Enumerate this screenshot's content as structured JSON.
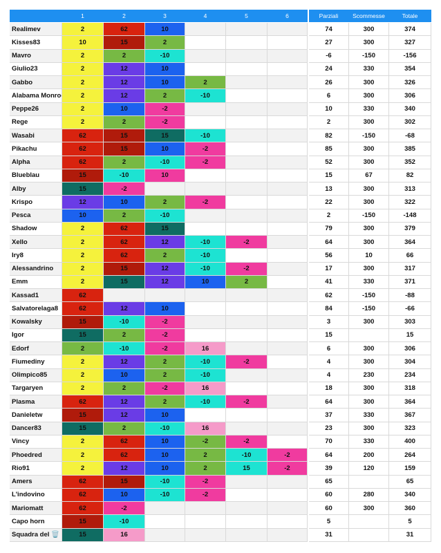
{
  "table": {
    "header": [
      "1",
      "2",
      "3",
      "4",
      "5",
      "6",
      "Parziali",
      "Scommesse",
      "Totale"
    ],
    "rows": [
      {
        "name": "Realimev",
        "scores": [
          2,
          62,
          10,
          null,
          null,
          null
        ],
        "colors": [
          "#f5f23c",
          "#d8230f",
          "#1c62ef",
          null,
          null,
          null
        ],
        "parziali": 74,
        "scommesse": 300,
        "totale": 374
      },
      {
        "name": "Kisses83",
        "scores": [
          10,
          15,
          2,
          null,
          null,
          null
        ],
        "colors": [
          "#f5f23c",
          "#b01b0b",
          "#77b944",
          null,
          null,
          null
        ],
        "parziali": 27,
        "scommesse": 300,
        "totale": 327
      },
      {
        "name": "Mavro",
        "scores": [
          2,
          2,
          -10,
          null,
          null,
          null
        ],
        "colors": [
          "#f5f23c",
          "#77b944",
          "#1de3d2",
          null,
          null,
          null
        ],
        "parziali": -6,
        "scommesse": -150,
        "totale": -156
      },
      {
        "name": "Giulio23",
        "scores": [
          2,
          12,
          10,
          null,
          null,
          null
        ],
        "colors": [
          "#f5f23c",
          "#6a3ce6",
          "#1c62ef",
          null,
          null,
          null
        ],
        "parziali": 24,
        "scommesse": 330,
        "totale": 354
      },
      {
        "name": "Gabbo",
        "scores": [
          2,
          12,
          10,
          2,
          null,
          null
        ],
        "colors": [
          "#f5f23c",
          "#6a3ce6",
          "#1c62ef",
          "#77b944",
          null,
          null
        ],
        "parziali": 26,
        "scommesse": 300,
        "totale": 326
      },
      {
        "name": "Alabama Monroe",
        "scores": [
          2,
          12,
          2,
          -10,
          null,
          null
        ],
        "colors": [
          "#f5f23c",
          "#6a3ce6",
          "#77b944",
          "#1de3d2",
          null,
          null
        ],
        "parziali": 6,
        "scommesse": 300,
        "totale": 306
      },
      {
        "name": "Peppe26",
        "scores": [
          2,
          10,
          -2,
          null,
          null,
          null
        ],
        "colors": [
          "#f5f23c",
          "#1c62ef",
          "#f03b9f",
          null,
          null,
          null
        ],
        "parziali": 10,
        "scommesse": 330,
        "totale": 340
      },
      {
        "name": "Rege",
        "scores": [
          2,
          2,
          -2,
          null,
          null,
          null
        ],
        "colors": [
          "#f5f23c",
          "#77b944",
          "#f03b9f",
          null,
          null,
          null
        ],
        "parziali": 2,
        "scommesse": 300,
        "totale": 302
      },
      {
        "name": "Wasabi",
        "scores": [
          62,
          15,
          15,
          -10,
          null,
          null
        ],
        "colors": [
          "#d8230f",
          "#b01b0b",
          "#0f6c62",
          "#1de3d2",
          null,
          null
        ],
        "parziali": 82,
        "scommesse": -150,
        "totale": -68
      },
      {
        "name": "Pikachu",
        "scores": [
          62,
          15,
          10,
          -2,
          null,
          null
        ],
        "colors": [
          "#d8230f",
          "#b01b0b",
          "#1c62ef",
          "#f03b9f",
          null,
          null
        ],
        "parziali": 85,
        "scommesse": 300,
        "totale": 385
      },
      {
        "name": "Alpha",
        "scores": [
          62,
          2,
          -10,
          -2,
          null,
          null
        ],
        "colors": [
          "#d8230f",
          "#77b944",
          "#1de3d2",
          "#f03b9f",
          null,
          null
        ],
        "parziali": 52,
        "scommesse": 300,
        "totale": 352
      },
      {
        "name": "Blueblau",
        "scores": [
          15,
          -10,
          10,
          null,
          null,
          null
        ],
        "colors": [
          "#b01b0b",
          "#1de3d2",
          "#f03b9f",
          null,
          null,
          null
        ],
        "parziali": 15,
        "scommesse": 67,
        "totale": 82
      },
      {
        "name": "Alby",
        "scores": [
          15,
          -2,
          null,
          null,
          null,
          null
        ],
        "colors": [
          "#0f6c62",
          "#f03b9f",
          null,
          null,
          null,
          null
        ],
        "parziali": 13,
        "scommesse": 300,
        "totale": 313
      },
      {
        "name": "Krispo",
        "scores": [
          12,
          10,
          2,
          -2,
          null,
          null
        ],
        "colors": [
          "#6a3ce6",
          "#1c62ef",
          "#77b944",
          "#f03b9f",
          null,
          null
        ],
        "parziali": 22,
        "scommesse": 300,
        "totale": 322
      },
      {
        "name": "Pesca",
        "scores": [
          10,
          2,
          -10,
          null,
          null,
          null
        ],
        "colors": [
          "#1c62ef",
          "#77b944",
          "#1de3d2",
          null,
          null,
          null
        ],
        "parziali": 2,
        "scommesse": -150,
        "totale": -148
      },
      {
        "name": "Shadow",
        "scores": [
          2,
          62,
          15,
          null,
          null,
          null
        ],
        "colors": [
          "#f5f23c",
          "#d8230f",
          "#0f6c62",
          null,
          null,
          null
        ],
        "parziali": 79,
        "scommesse": 300,
        "totale": 379
      },
      {
        "name": "Xello",
        "scores": [
          2,
          62,
          12,
          -10,
          -2,
          null
        ],
        "colors": [
          "#f5f23c",
          "#d8230f",
          "#6a3ce6",
          "#1de3d2",
          "#f03b9f",
          null
        ],
        "parziali": 64,
        "scommesse": 300,
        "totale": 364
      },
      {
        "name": "Iry8",
        "scores": [
          2,
          62,
          2,
          -10,
          null,
          null
        ],
        "colors": [
          "#f5f23c",
          "#d8230f",
          "#77b944",
          "#1de3d2",
          null,
          null
        ],
        "parziali": 56,
        "scommesse": 10,
        "totale": 66
      },
      {
        "name": "Alessandrino",
        "scores": [
          2,
          15,
          12,
          -10,
          -2,
          null
        ],
        "colors": [
          "#f5f23c",
          "#b01b0b",
          "#6a3ce6",
          "#1de3d2",
          "#f03b9f",
          null
        ],
        "parziali": 17,
        "scommesse": 300,
        "totale": 317
      },
      {
        "name": "Emm",
        "scores": [
          2,
          15,
          12,
          10,
          2,
          null
        ],
        "colors": [
          "#f5f23c",
          "#0f6c62",
          "#6a3ce6",
          "#1c62ef",
          "#77b944",
          null
        ],
        "parziali": 41,
        "scommesse": 330,
        "totale": 371
      },
      {
        "name": "Kassad1",
        "scores": [
          62,
          null,
          null,
          null,
          null,
          null
        ],
        "colors": [
          "#d8230f",
          null,
          null,
          null,
          null,
          null
        ],
        "parziali": 62,
        "scommesse": -150,
        "totale": -88
      },
      {
        "name": "Salvatorelaga8",
        "scores": [
          62,
          12,
          10,
          null,
          null,
          null
        ],
        "colors": [
          "#d8230f",
          "#6a3ce6",
          "#1c62ef",
          null,
          null,
          null
        ],
        "parziali": 84,
        "scommesse": -150,
        "totale": -66
      },
      {
        "name": "Kowalsky",
        "scores": [
          15,
          -10,
          -2,
          null,
          null,
          null
        ],
        "colors": [
          "#b01b0b",
          "#1de3d2",
          "#f03b9f",
          null,
          null,
          null
        ],
        "parziali": 3,
        "scommesse": 300,
        "totale": 303
      },
      {
        "name": "Igor",
        "scores": [
          15,
          2,
          -2,
          null,
          null,
          null
        ],
        "colors": [
          "#0f6c62",
          "#77b944",
          "#f03b9f",
          null,
          null,
          null
        ],
        "parziali": 15,
        "scommesse": null,
        "totale": 15
      },
      {
        "name": "Edorf",
        "scores": [
          2,
          -10,
          -2,
          16,
          null,
          null
        ],
        "colors": [
          "#77b944",
          "#1de3d2",
          "#f03b9f",
          "#f59bc9",
          null,
          null
        ],
        "parziali": 6,
        "scommesse": 300,
        "totale": 306
      },
      {
        "name": "Fiumediny",
        "scores": [
          2,
          12,
          2,
          -10,
          -2,
          null
        ],
        "colors": [
          "#f5f23c",
          "#6a3ce6",
          "#77b944",
          "#1de3d2",
          "#f03b9f",
          null
        ],
        "parziali": 4,
        "scommesse": 300,
        "totale": 304
      },
      {
        "name": "Olimpico85",
        "scores": [
          2,
          10,
          2,
          -10,
          null,
          null
        ],
        "colors": [
          "#f5f23c",
          "#1c62ef",
          "#77b944",
          "#1de3d2",
          null,
          null
        ],
        "parziali": 4,
        "scommesse": 230,
        "totale": 234
      },
      {
        "name": "Targaryen",
        "scores": [
          2,
          2,
          -2,
          16,
          null,
          null
        ],
        "colors": [
          "#f5f23c",
          "#77b944",
          "#f03b9f",
          "#f59bc9",
          null,
          null
        ],
        "parziali": 18,
        "scommesse": 300,
        "totale": 318
      },
      {
        "name": "Plasma",
        "scores": [
          62,
          12,
          2,
          -10,
          -2,
          null
        ],
        "colors": [
          "#d8230f",
          "#6a3ce6",
          "#77b944",
          "#1de3d2",
          "#f03b9f",
          null
        ],
        "parziali": 64,
        "scommesse": 300,
        "totale": 364
      },
      {
        "name": "Danieletw",
        "scores": [
          15,
          12,
          10,
          null,
          null,
          null
        ],
        "colors": [
          "#b01b0b",
          "#6a3ce6",
          "#1c62ef",
          null,
          null,
          null
        ],
        "parziali": 37,
        "scommesse": 330,
        "totale": 367
      },
      {
        "name": "Dancer83",
        "scores": [
          15,
          2,
          -10,
          16,
          null,
          null
        ],
        "colors": [
          "#0f6c62",
          "#77b944",
          "#1de3d2",
          "#f59bc9",
          null,
          null
        ],
        "parziali": 23,
        "scommesse": 300,
        "totale": 323
      },
      {
        "name": "Vincy",
        "scores": [
          2,
          62,
          10,
          -2,
          -2,
          null
        ],
        "colors": [
          "#f5f23c",
          "#d8230f",
          "#1c62ef",
          "#77b944",
          "#f03b9f",
          null
        ],
        "parziali": 70,
        "scommesse": 330,
        "totale": 400
      },
      {
        "name": "Phoedred",
        "scores": [
          2,
          62,
          10,
          2,
          -10,
          -2
        ],
        "colors": [
          "#f5f23c",
          "#d8230f",
          "#1c62ef",
          "#77b944",
          "#1de3d2",
          "#f03b9f"
        ],
        "parziali": 64,
        "scommesse": 200,
        "totale": 264
      },
      {
        "name": "Rio91",
        "scores": [
          2,
          12,
          10,
          2,
          15,
          -2
        ],
        "colors": [
          "#f5f23c",
          "#6a3ce6",
          "#1c62ef",
          "#77b944",
          "#1de3d2",
          "#f03b9f"
        ],
        "parziali": 39,
        "scommesse": 120,
        "totale": 159
      },
      {
        "name": "Amers",
        "scores": [
          62,
          15,
          -10,
          -2,
          null,
          null
        ],
        "colors": [
          "#d8230f",
          "#b01b0b",
          "#1de3d2",
          "#f03b9f",
          null,
          null
        ],
        "parziali": 65,
        "scommesse": null,
        "totale": 65
      },
      {
        "name": "L'indovino",
        "scores": [
          62,
          10,
          -10,
          -2,
          null,
          null
        ],
        "colors": [
          "#d8230f",
          "#1c62ef",
          "#1de3d2",
          "#f03b9f",
          null,
          null
        ],
        "parziali": 60,
        "scommesse": 280,
        "totale": 340
      },
      {
        "name": "Mariomatt",
        "scores": [
          62,
          -2,
          null,
          null,
          null,
          null
        ],
        "colors": [
          "#d8230f",
          "#f03b9f",
          null,
          null,
          null,
          null
        ],
        "parziali": 60,
        "scommesse": 300,
        "totale": 360
      },
      {
        "name": "Capo horn",
        "scores": [
          15,
          -10,
          null,
          null,
          null,
          null
        ],
        "colors": [
          "#b01b0b",
          "#1de3d2",
          null,
          null,
          null,
          null
        ],
        "parziali": 5,
        "scommesse": null,
        "totale": 5
      },
      {
        "name": "Squadra del 🗑️",
        "scores": [
          15,
          16,
          null,
          null,
          null,
          null
        ],
        "colors": [
          "#0f6c62",
          "#f59bc9",
          null,
          null,
          null,
          null
        ],
        "parziali": 31,
        "scommesse": null,
        "totale": 31
      }
    ]
  }
}
